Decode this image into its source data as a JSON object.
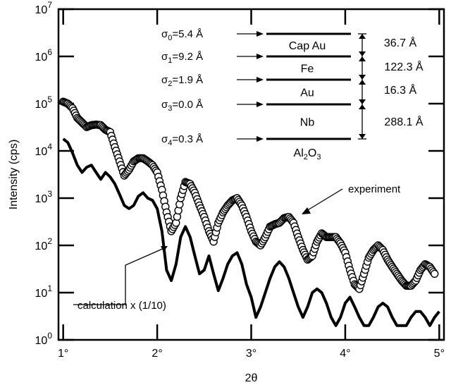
{
  "chart_data": {
    "type": "line",
    "xlabel": "2θ",
    "ylabel": "Intensity (cps)",
    "xlim": [
      0.95,
      5.05
    ],
    "ylim": [
      1,
      10000000
    ],
    "yscale": "log",
    "xticks": [
      {
        "value": 1,
        "label": "1°"
      },
      {
        "value": 2,
        "label": "2°"
      },
      {
        "value": 3,
        "label": "3°"
      },
      {
        "value": 4,
        "label": "4°"
      },
      {
        "value": 5,
        "label": "5°"
      }
    ],
    "yticks": [
      {
        "value": 1,
        "base": "10",
        "exp": "0"
      },
      {
        "value": 10,
        "base": "10",
        "exp": "1"
      },
      {
        "value": 100,
        "base": "10",
        "exp": "2"
      },
      {
        "value": 1000,
        "base": "10",
        "exp": "3"
      },
      {
        "value": 10000,
        "base": "10",
        "exp": "4"
      },
      {
        "value": 100000,
        "base": "10",
        "exp": "5"
      },
      {
        "value": 1000000,
        "base": "10",
        "exp": "6"
      },
      {
        "value": 10000000,
        "base": "10",
        "exp": "7"
      }
    ],
    "series": [
      {
        "name": "experiment",
        "style": "open-circles",
        "x": [
          1.0,
          1.05,
          1.1,
          1.15,
          1.2,
          1.25,
          1.3,
          1.35,
          1.4,
          1.45,
          1.5,
          1.55,
          1.6,
          1.65,
          1.7,
          1.75,
          1.8,
          1.85,
          1.9,
          1.95,
          2.0,
          2.05,
          2.1,
          2.15,
          2.2,
          2.25,
          2.3,
          2.35,
          2.4,
          2.45,
          2.5,
          2.55,
          2.6,
          2.65,
          2.7,
          2.75,
          2.8,
          2.85,
          2.9,
          2.95,
          3.0,
          3.05,
          3.1,
          3.15,
          3.2,
          3.25,
          3.3,
          3.35,
          3.4,
          3.45,
          3.5,
          3.55,
          3.6,
          3.65,
          3.7,
          3.75,
          3.8,
          3.85,
          3.9,
          3.95,
          4.0,
          4.05,
          4.1,
          4.15,
          4.2,
          4.25,
          4.3,
          4.35,
          4.4,
          4.45,
          4.5,
          4.55,
          4.6,
          4.65,
          4.7,
          4.75,
          4.8,
          4.85,
          4.9,
          4.95
        ],
        "y": [
          110000,
          100000,
          80000,
          50000,
          40000,
          32000,
          35000,
          36000,
          35000,
          28000,
          25000,
          12000,
          6000,
          3000,
          4000,
          6000,
          7000,
          7000,
          6000,
          5000,
          3500,
          1500,
          500,
          200,
          300,
          1000,
          2200,
          2000,
          1300,
          700,
          400,
          200,
          120,
          300,
          500,
          700,
          900,
          1000,
          700,
          400,
          200,
          120,
          100,
          150,
          250,
          280,
          300,
          380,
          400,
          300,
          150,
          80,
          50,
          60,
          120,
          180,
          150,
          150,
          150,
          110,
          70,
          30,
          15,
          12,
          25,
          55,
          80,
          100,
          80,
          50,
          35,
          25,
          18,
          14,
          14,
          18,
          30,
          40,
          35,
          25
        ]
      },
      {
        "name": "calculation x (1/10)",
        "style": "thick-line",
        "x": [
          1.0,
          1.05,
          1.1,
          1.15,
          1.2,
          1.25,
          1.3,
          1.35,
          1.4,
          1.45,
          1.5,
          1.55,
          1.6,
          1.65,
          1.7,
          1.75,
          1.8,
          1.85,
          1.9,
          1.95,
          2.0,
          2.05,
          2.1,
          2.15,
          2.2,
          2.25,
          2.3,
          2.35,
          2.4,
          2.45,
          2.5,
          2.55,
          2.6,
          2.65,
          2.7,
          2.75,
          2.8,
          2.85,
          2.9,
          2.95,
          3.0,
          3.05,
          3.1,
          3.15,
          3.2,
          3.25,
          3.3,
          3.35,
          3.4,
          3.45,
          3.5,
          3.55,
          3.6,
          3.65,
          3.7,
          3.75,
          3.8,
          3.85,
          3.9,
          3.95,
          4.0,
          4.05,
          4.1,
          4.15,
          4.2,
          4.25,
          4.3,
          4.35,
          4.4,
          4.45,
          4.5,
          4.55,
          4.6,
          4.65,
          4.7,
          4.75,
          4.8,
          4.85,
          4.9,
          4.95,
          5.0
        ],
        "y": [
          18000,
          15000,
          9000,
          5000,
          3500,
          4500,
          5000,
          3500,
          2500,
          3500,
          2800,
          2000,
          1200,
          700,
          600,
          700,
          1100,
          1300,
          1000,
          900,
          600,
          200,
          30,
          18,
          40,
          150,
          250,
          150,
          60,
          25,
          30,
          60,
          25,
          11,
          20,
          40,
          60,
          70,
          40,
          15,
          8,
          3,
          5,
          10,
          20,
          35,
          45,
          35,
          20,
          10,
          5,
          3,
          5,
          10,
          12,
          10,
          6,
          3,
          2,
          3,
          6,
          8,
          5,
          3,
          2,
          2,
          3,
          5,
          6,
          5,
          3,
          2,
          2,
          2,
          3,
          4,
          4,
          3,
          2,
          3,
          4
        ]
      }
    ],
    "inset": {
      "sigmas": [
        {
          "symbol": "σ",
          "sub": "0",
          "value": "=5.4 Å"
        },
        {
          "symbol": "σ",
          "sub": "1",
          "value": "=9.2 Å"
        },
        {
          "symbol": "σ",
          "sub": "2",
          "value": "=1.9 Å"
        },
        {
          "symbol": "σ",
          "sub": "3",
          "value": "=0.0 Å"
        },
        {
          "symbol": "σ",
          "sub": "4",
          "value": "=0.3 Å"
        }
      ],
      "layers": [
        "Cap Au",
        "Fe",
        "Au",
        "Nb"
      ],
      "substrate": {
        "main": "Al",
        "sub": "2",
        "post": "O",
        "sub2": "3"
      },
      "thicknesses": [
        "36.7 Å",
        "122.3 Å",
        "16.3 Å",
        "288.1 Å"
      ]
    },
    "annotations": {
      "experiment": "experiment",
      "calculation": "calculation x (1/10)"
    }
  }
}
